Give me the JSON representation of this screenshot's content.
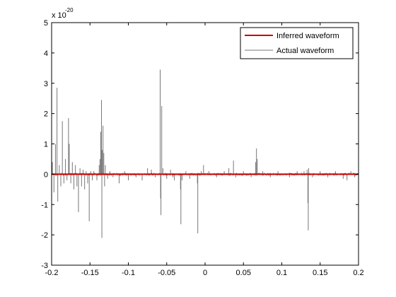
{
  "chart_data": {
    "type": "line",
    "title": "",
    "xlabel": "",
    "ylabel": "",
    "y_scale_multiplier": {
      "base": "x 10",
      "exponent": "-20"
    },
    "xlim": [
      -0.2,
      0.2
    ],
    "ylim": [
      -3,
      5
    ],
    "x_ticks": [
      -0.2,
      -0.15,
      -0.1,
      -0.05,
      0,
      0.05,
      0.1,
      0.15,
      0.2
    ],
    "x_tick_labels": [
      "-0.2",
      "-0.15",
      "-0.1",
      "-0.05",
      "0",
      "0.05",
      "0.1",
      "0.15",
      "0.2"
    ],
    "y_ticks": [
      -3,
      -2,
      -1,
      0,
      1,
      2,
      3,
      4,
      5
    ],
    "y_tick_labels": [
      "-3",
      "-2",
      "-1",
      "0",
      "1",
      "2",
      "3",
      "4",
      "5"
    ],
    "grid": false,
    "legend": {
      "placement": "top-right",
      "entries": [
        {
          "label": "Inferred waveform",
          "color": "#cc0000"
        },
        {
          "label": "Actual waveform",
          "color": "#777777"
        }
      ]
    },
    "series": [
      {
        "name": "Inferred waveform",
        "color": "#cc0000",
        "x": [
          -0.2,
          0.2
        ],
        "y": [
          0,
          0
        ]
      },
      {
        "name": "Actual waveform",
        "color": "#777777",
        "spikes": [
          [
            -0.199,
            0.4
          ],
          [
            -0.197,
            -0.6
          ],
          [
            -0.195,
            1.0
          ],
          [
            -0.193,
            2.85
          ],
          [
            -0.192,
            -0.9
          ],
          [
            -0.19,
            0.3
          ],
          [
            -0.188,
            -0.4
          ],
          [
            -0.186,
            1.75
          ],
          [
            -0.184,
            -0.3
          ],
          [
            -0.182,
            0.5
          ],
          [
            -0.18,
            -0.2
          ],
          [
            -0.178,
            1.85
          ],
          [
            -0.177,
            1.0
          ],
          [
            -0.175,
            -0.3
          ],
          [
            -0.173,
            0.4
          ],
          [
            -0.171,
            -0.5
          ],
          [
            -0.169,
            0.3
          ],
          [
            -0.167,
            -0.4
          ],
          [
            -0.165,
            -1.25
          ],
          [
            -0.163,
            0.2
          ],
          [
            -0.161,
            -0.4
          ],
          [
            -0.159,
            0.15
          ],
          [
            -0.157,
            -0.5
          ],
          [
            -0.155,
            0.1
          ],
          [
            -0.153,
            -0.3
          ],
          [
            -0.151,
            -1.55
          ],
          [
            -0.149,
            0.1
          ],
          [
            -0.147,
            -0.2
          ],
          [
            -0.145,
            0.1
          ],
          [
            -0.141,
            -0.2
          ],
          [
            -0.138,
            0.3
          ],
          [
            -0.137,
            0.5
          ],
          [
            -0.136,
            1.4
          ],
          [
            -0.135,
            2.45
          ],
          [
            -0.1345,
            -2.1
          ],
          [
            -0.134,
            0.8
          ],
          [
            -0.133,
            1.6
          ],
          [
            -0.132,
            0.7
          ],
          [
            -0.131,
            -0.4
          ],
          [
            -0.13,
            0.3
          ],
          [
            -0.127,
            -0.15
          ],
          [
            -0.124,
            0.1
          ],
          [
            -0.12,
            -0.1
          ],
          [
            -0.112,
            -0.3
          ],
          [
            -0.105,
            0.1
          ],
          [
            -0.1,
            -0.2
          ],
          [
            -0.09,
            -0.1
          ],
          [
            -0.082,
            -0.2
          ],
          [
            -0.075,
            0.2
          ],
          [
            -0.07,
            0.15
          ],
          [
            -0.065,
            -0.1
          ],
          [
            -0.0585,
            3.45
          ],
          [
            -0.058,
            -0.8
          ],
          [
            -0.0575,
            -1.35
          ],
          [
            -0.0565,
            2.25
          ],
          [
            -0.055,
            0.2
          ],
          [
            -0.05,
            -0.15
          ],
          [
            -0.045,
            0.15
          ],
          [
            -0.042,
            -0.1
          ],
          [
            -0.04,
            -0.2
          ],
          [
            -0.032,
            -0.5
          ],
          [
            -0.0315,
            -1.65
          ],
          [
            -0.03,
            -0.2
          ],
          [
            -0.025,
            0.1
          ],
          [
            -0.02,
            -0.15
          ],
          [
            -0.01,
            -0.3
          ],
          [
            -0.0095,
            -1.95
          ],
          [
            -0.005,
            0.1
          ],
          [
            -0.002,
            0.3
          ],
          [
            0.005,
            0.1
          ],
          [
            0.015,
            -0.1
          ],
          [
            0.025,
            0.1
          ],
          [
            0.031,
            0.2
          ],
          [
            0.037,
            0.45
          ],
          [
            0.04,
            -0.1
          ],
          [
            0.05,
            0.1
          ],
          [
            0.06,
            -0.1
          ],
          [
            0.066,
            0.4
          ],
          [
            0.067,
            0.85
          ],
          [
            0.068,
            0.5
          ],
          [
            0.075,
            0.1
          ],
          [
            0.085,
            -0.1
          ],
          [
            0.095,
            0.1
          ],
          [
            0.11,
            -0.1
          ],
          [
            0.12,
            0.1
          ],
          [
            0.129,
            0.1
          ],
          [
            0.133,
            0.15
          ],
          [
            0.134,
            -0.95
          ],
          [
            0.1345,
            -1.85
          ],
          [
            0.135,
            0.2
          ],
          [
            0.14,
            -0.1
          ],
          [
            0.15,
            0.1
          ],
          [
            0.16,
            -0.1
          ],
          [
            0.17,
            0.1
          ],
          [
            0.18,
            -0.15
          ],
          [
            0.185,
            -0.2
          ],
          [
            0.19,
            0.1
          ],
          [
            0.195,
            -0.1
          ]
        ]
      }
    ]
  }
}
